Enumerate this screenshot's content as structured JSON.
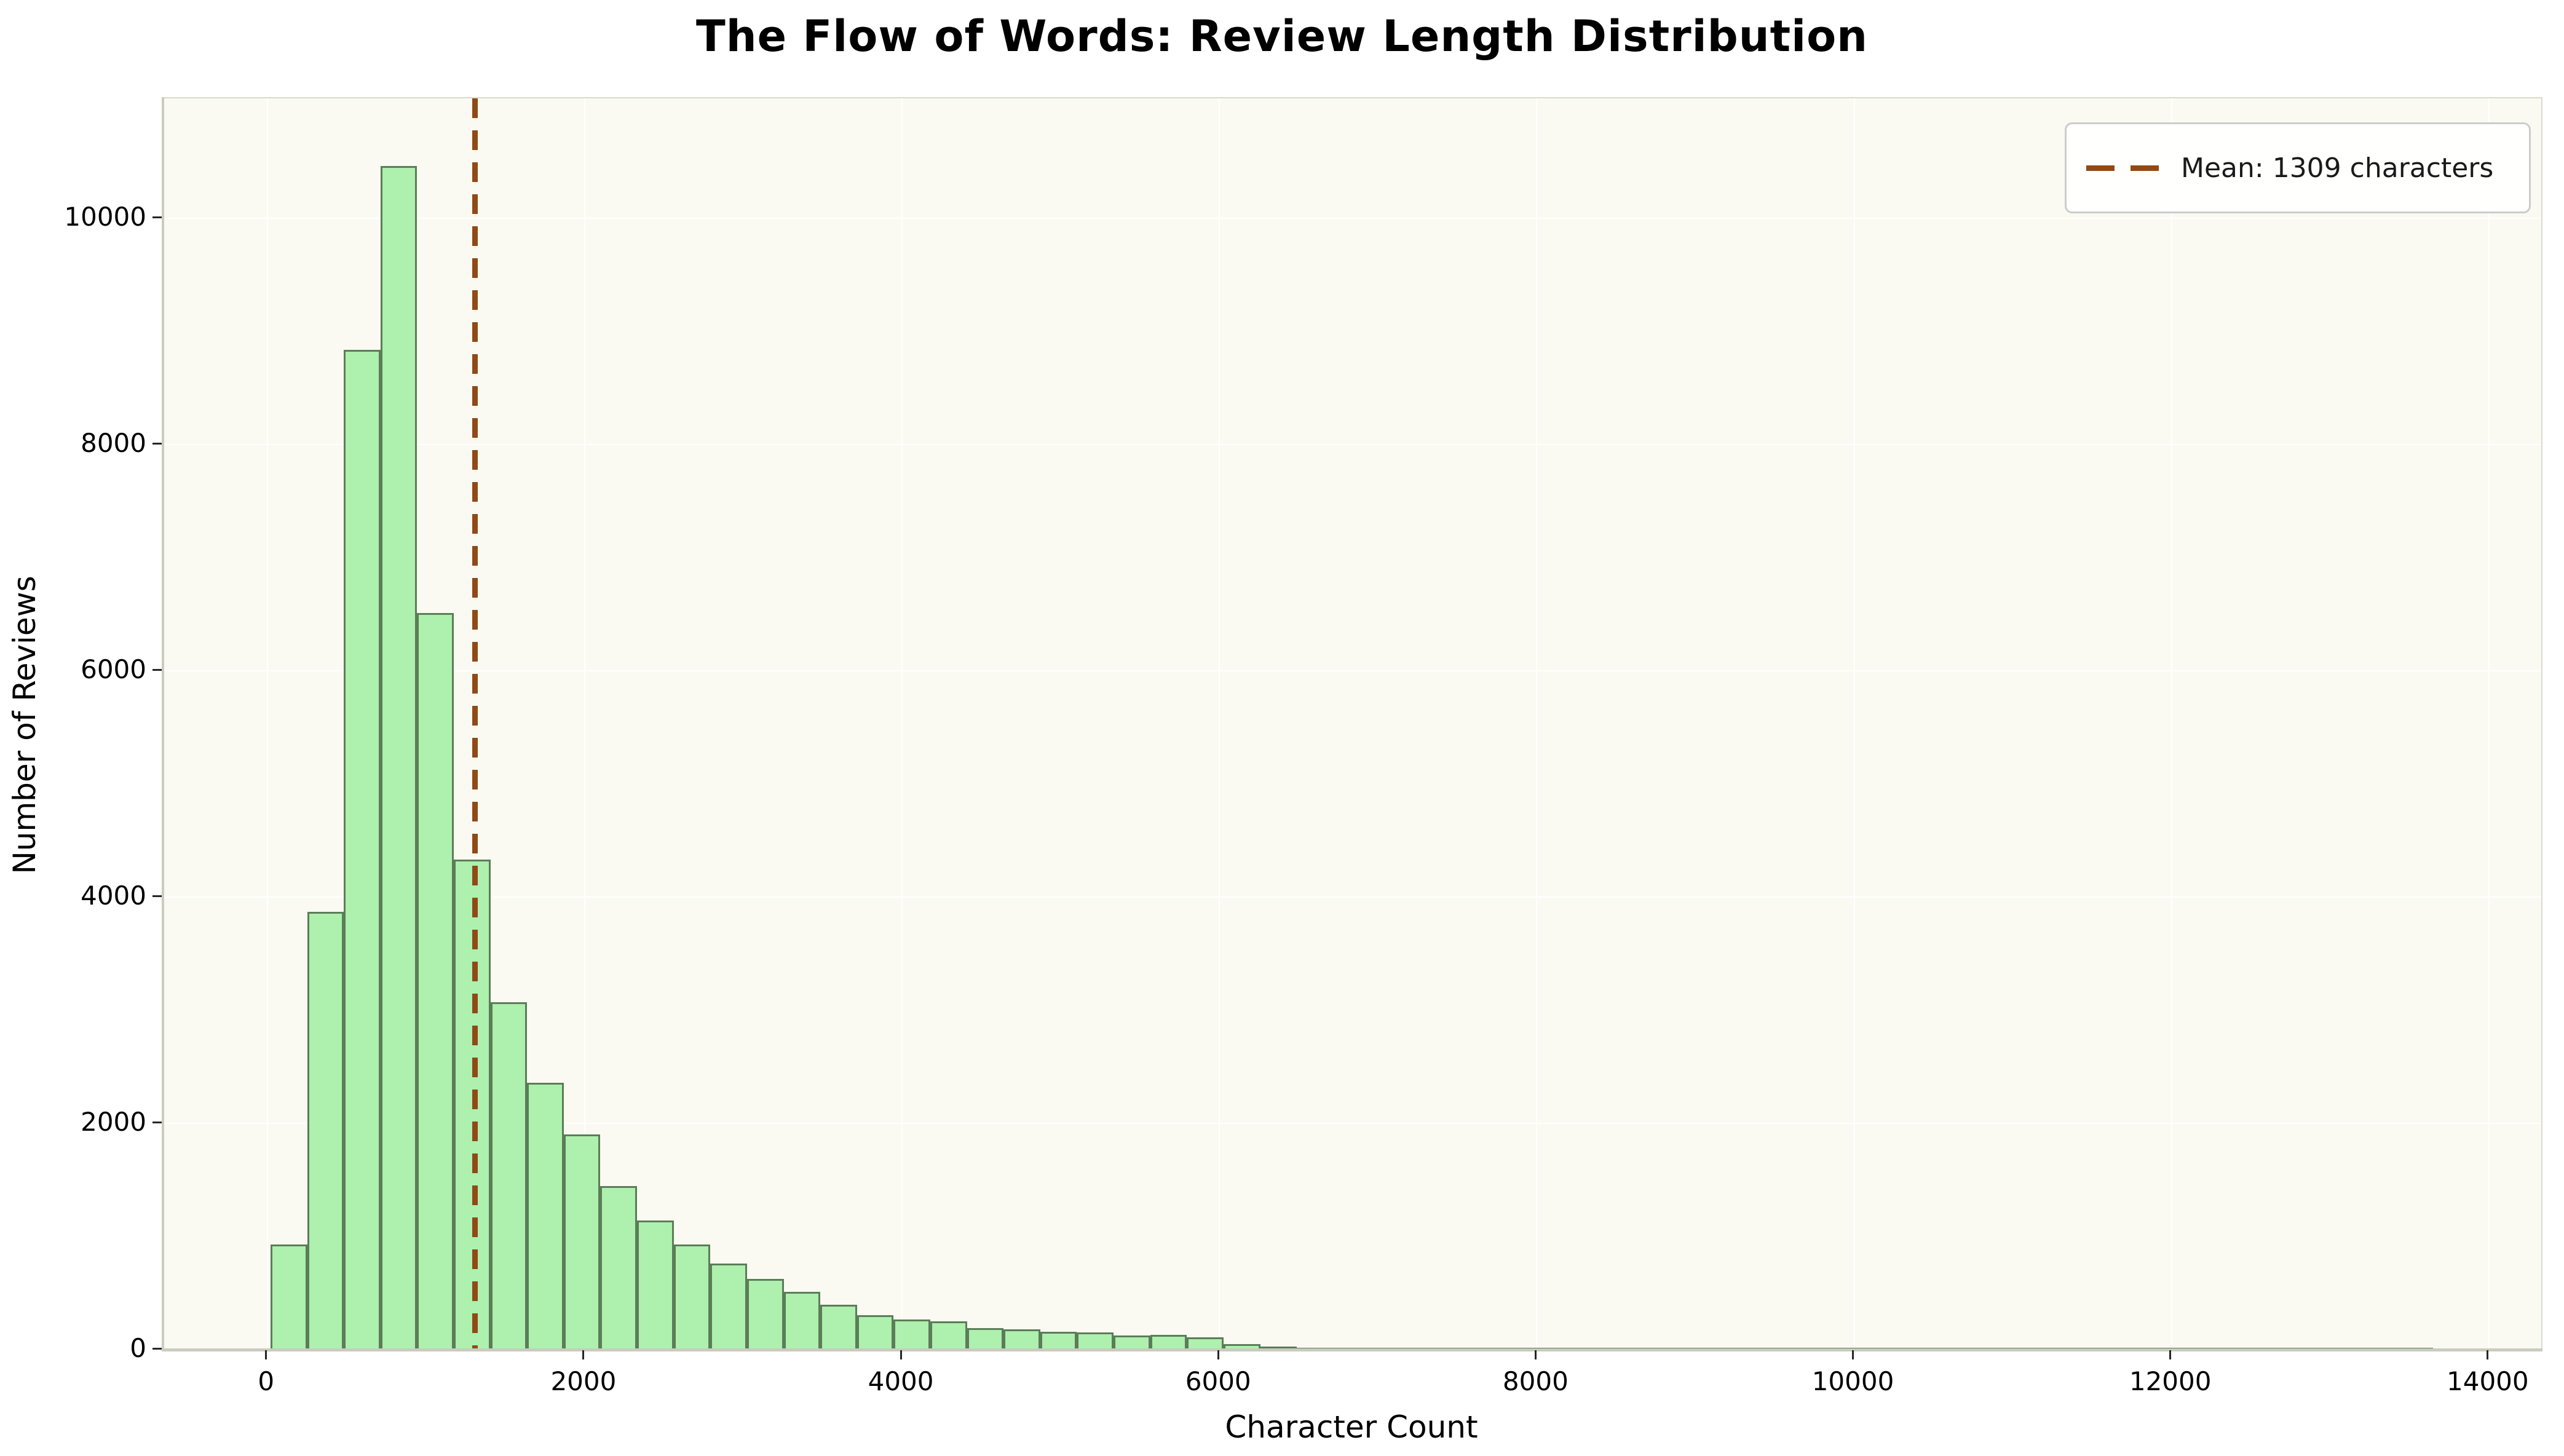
{
  "figure": {
    "title": "The Flow of Words: Review Length Distribution"
  },
  "axes": {
    "xlabel": "Character Count",
    "ylabel": "Number of Reviews"
  },
  "legend": {
    "label": "Mean: 1309 characters"
  },
  "chart_data": {
    "type": "bar",
    "subtype": "histogram",
    "title": "The Flow of Words: Review Length Distribution",
    "xlabel": "Character Count",
    "ylabel": "Number of Reviews",
    "bin_start": 20,
    "bin_width": 231,
    "heights": [
      930,
      3870,
      8835,
      10460,
      6510,
      4330,
      3070,
      2360,
      1900,
      1448,
      1140,
      930,
      760,
      623,
      509,
      397,
      306,
      265,
      252,
      192,
      179,
      155,
      150,
      125,
      128,
      107,
      47,
      26,
      16,
      10,
      11,
      10,
      5,
      4,
      4,
      4,
      3,
      3,
      3,
      3,
      3,
      3,
      2,
      2,
      2,
      2,
      2,
      2,
      2,
      2,
      2,
      2,
      2,
      2,
      2,
      2,
      2,
      2,
      2
    ],
    "mean": 1309,
    "mean_label": "Mean: 1309 characters",
    "xticks": [
      0,
      2000,
      4000,
      6000,
      8000,
      10000,
      12000,
      14000
    ],
    "yticks": [
      0,
      2000,
      4000,
      6000,
      8000,
      10000
    ],
    "xlim": [
      -650,
      14330
    ],
    "ylim": [
      0,
      11060
    ],
    "grid": true,
    "legend_position": "upper right",
    "colors": {
      "bar_fill": "#aef0ae",
      "bar_edge": "#5b7d58",
      "mean_line": "#8f4a16",
      "plot_background": "#fafaf2",
      "gridline": "#ffffff",
      "spine": "#c9ccbe",
      "legend_border": "#cccccc",
      "text": "#000000"
    }
  }
}
